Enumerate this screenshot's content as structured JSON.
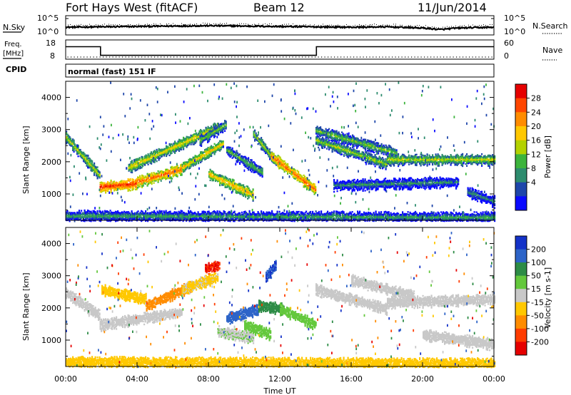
{
  "header": {
    "station": "Fort Hays West (fitACF)",
    "beam": "Beam 12",
    "date": "11/Jun/2014"
  },
  "noise_panel": {
    "left_label": "N.Sky",
    "left_ticks": [
      "10^5",
      "10^0"
    ],
    "right_ticks": [
      "10^5",
      "10^0"
    ],
    "right_label": "N.Search"
  },
  "freq_panel": {
    "left_label_1": "Freq.",
    "left_label_2": "[MHz]",
    "left_ticks": [
      "18",
      "8"
    ],
    "right_ticks": [
      "60",
      "0"
    ],
    "right_label": "Nave"
  },
  "cpid": {
    "label": "CPID",
    "mode": "normal (fast) 151 IF"
  },
  "chart_data": [
    {
      "type": "line",
      "name_ref": "noise_panel",
      "x": [
        0,
        2,
        4,
        6,
        8,
        10,
        12,
        14,
        16,
        18,
        20,
        21,
        22,
        24
      ],
      "series": [
        {
          "name": "N.Sky",
          "values": [
            2.0,
            2.1,
            2.2,
            2.3,
            2.4,
            2.3,
            2.2,
            2.1,
            2.0,
            2.1,
            1.8,
            1.4,
            1.8,
            2.0
          ]
        },
        {
          "name": "N.Search",
          "values": [
            2.4,
            2.5,
            2.6,
            2.7,
            2.8,
            2.7,
            2.6,
            2.5,
            2.4,
            2.6,
            2.2,
            1.8,
            2.2,
            2.4
          ]
        }
      ],
      "ylim": [
        0,
        5
      ]
    },
    {
      "type": "line",
      "name_ref": "freq_panel",
      "x": [
        0,
        1.95,
        1.95,
        14.05,
        14.05,
        24
      ],
      "series": [
        {
          "name": "Freq.",
          "values": [
            14.5,
            14.5,
            10.0,
            10.0,
            14.5,
            14.5
          ]
        },
        {
          "name": "Nave",
          "values": [
            8,
            8,
            8,
            8,
            8,
            8
          ]
        }
      ],
      "ylim": [
        8,
        18
      ]
    },
    {
      "type": "heatmap",
      "name_ref": "power_panel",
      "ylabel": "Slant Range [km]",
      "xlim": [
        0,
        24
      ],
      "ylim": [
        180,
        4500
      ],
      "yticks": [
        1000,
        2000,
        3000,
        4000
      ],
      "colorbar": {
        "label": "Power [dB]",
        "ticks": [
          "28",
          "24",
          "20",
          "16",
          "12",
          "8",
          "4"
        ],
        "colors": [
          "#e60000",
          "#ff4600",
          "#ff8c00",
          "#ffc800",
          "#b4d200",
          "#3cb43c",
          "#2d8c6e",
          "#1e46aa",
          "#0a0aff"
        ]
      },
      "bands": [
        {
          "t0": 0.0,
          "t1": 1.9,
          "r0": 2800,
          "r1": 1600,
          "level": 0.55
        },
        {
          "t0": 1.9,
          "t1": 4.0,
          "r0": 1250,
          "r1": 1350,
          "level": 0.95
        },
        {
          "t0": 4.0,
          "t1": 6.5,
          "r0": 1400,
          "r1": 1800,
          "level": 0.85
        },
        {
          "t0": 6.5,
          "t1": 8.8,
          "r0": 1850,
          "r1": 2600,
          "level": 0.65
        },
        {
          "t0": 3.5,
          "t1": 8.5,
          "r0": 1850,
          "r1": 3100,
          "level": 0.6
        },
        {
          "t0": 7.5,
          "t1": 9.0,
          "r0": 2700,
          "r1": 3200,
          "level": 0.45
        },
        {
          "t0": 9.0,
          "t1": 11.0,
          "r0": 2400,
          "r1": 1700,
          "level": 0.4
        },
        {
          "t0": 8.0,
          "t1": 10.5,
          "r0": 1650,
          "r1": 1000,
          "level": 0.7
        },
        {
          "t0": 10.5,
          "t1": 11.8,
          "r0": 2900,
          "r1": 2000,
          "level": 0.5
        },
        {
          "t0": 11.5,
          "t1": 14.0,
          "r0": 2200,
          "r1": 1150,
          "level": 0.85
        },
        {
          "t0": 14.0,
          "t1": 18.0,
          "r0": 2700,
          "r1": 1950,
          "level": 0.5
        },
        {
          "t0": 14.0,
          "t1": 18.5,
          "r0": 3000,
          "r1": 2300,
          "level": 0.45
        },
        {
          "t0": 18.0,
          "t1": 24.0,
          "r0": 2100,
          "r1": 2100,
          "level": 0.55
        },
        {
          "t0": 15.0,
          "t1": 22.0,
          "r0": 1300,
          "r1": 1400,
          "level": 0.3
        },
        {
          "t0": 22.5,
          "t1": 24.0,
          "r0": 1100,
          "r1": 800,
          "level": 0.3
        },
        {
          "t0": 0.0,
          "t1": 24.0,
          "r0": 350,
          "r1": 300,
          "level": 0.35
        }
      ]
    },
    {
      "type": "heatmap",
      "name_ref": "velocity_panel",
      "ylabel": "Slant Range [km]",
      "xlabel": "Time UT",
      "xlim": [
        0,
        24
      ],
      "ylim": [
        180,
        4500
      ],
      "yticks": [
        1000,
        2000,
        3000,
        4000
      ],
      "xticks": [
        "00:00",
        "04:00",
        "08:00",
        "12:00",
        "16:00",
        "20:00",
        "00:00"
      ],
      "colorbar": {
        "label": "Velocity [m s-1]",
        "ticks": [
          "200",
          "100",
          "50",
          "15",
          "-15",
          "-50",
          "-100",
          "-200"
        ],
        "colors": [
          "#1432c8",
          "#2d64c8",
          "#2d8c46",
          "#64c83c",
          "#c8c8c8",
          "#ffc800",
          "#ff8c00",
          "#ff3c00",
          "#e60000"
        ]
      },
      "bands": [
        {
          "t0": 0.0,
          "t1": 1.9,
          "r0": 2500,
          "r1": 1800,
          "v": 0
        },
        {
          "t0": 1.9,
          "t1": 6.5,
          "r0": 1500,
          "r1": 1900,
          "v": 0
        },
        {
          "t0": 2.0,
          "t1": 4.5,
          "r0": 2600,
          "r1": 2300,
          "v": -40
        },
        {
          "t0": 4.5,
          "t1": 7.0,
          "r0": 2100,
          "r1": 2700,
          "v": -80
        },
        {
          "t0": 6.5,
          "t1": 8.5,
          "r0": 2600,
          "r1": 3000,
          "v": -20
        },
        {
          "t0": 7.8,
          "t1": 8.6,
          "r0": 3250,
          "r1": 3350,
          "v": -200
        },
        {
          "t0": 9.0,
          "t1": 10.8,
          "r0": 1700,
          "r1": 2000,
          "v": 150
        },
        {
          "t0": 10.8,
          "t1": 12.2,
          "r0": 2100,
          "r1": 2000,
          "v": 80
        },
        {
          "t0": 10.0,
          "t1": 11.5,
          "r0": 1500,
          "r1": 1200,
          "v": 40
        },
        {
          "t0": 8.5,
          "t1": 10.5,
          "r0": 1300,
          "r1": 1100,
          "v": 10
        },
        {
          "t0": 11.2,
          "t1": 11.8,
          "r0": 3000,
          "r1": 3400,
          "v": 200
        },
        {
          "t0": 12.0,
          "t1": 14.0,
          "r0": 2000,
          "r1": 1500,
          "v": 30
        },
        {
          "t0": 14.0,
          "t1": 18.0,
          "r0": 2600,
          "r1": 2000,
          "v": 0
        },
        {
          "t0": 16.0,
          "t1": 19.5,
          "r0": 2900,
          "r1": 2400,
          "v": 0
        },
        {
          "t0": 18.0,
          "t1": 24.0,
          "r0": 2200,
          "r1": 2300,
          "v": 0
        },
        {
          "t0": 20.0,
          "t1": 24.0,
          "r0": 1200,
          "r1": 900,
          "v": 0
        },
        {
          "t0": 0.0,
          "t1": 24.0,
          "r0": 350,
          "r1": 300,
          "v": -30
        }
      ]
    }
  ]
}
